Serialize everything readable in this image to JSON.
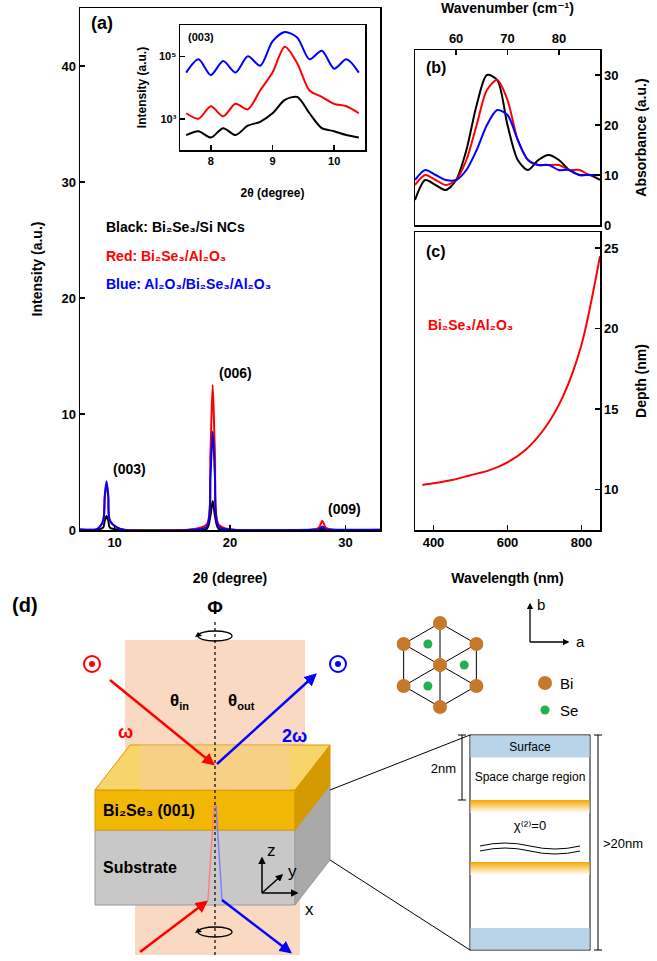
{
  "chart_data": [
    {
      "panel": "(a)",
      "type": "line",
      "xlabel": "2θ (degree)",
      "ylabel": "Intensity (a.u.)",
      "xlim": [
        7,
        33
      ],
      "xticks": [
        10,
        20,
        30
      ],
      "ylim": [
        0,
        45
      ],
      "yticks": [
        0,
        10,
        20,
        30,
        40
      ],
      "x": [
        7,
        8.5,
        9.0,
        9.15,
        9.3,
        9.45,
        9.6,
        10.5,
        17.0,
        18.0,
        18.3,
        18.5,
        18.7,
        19.0,
        20.0,
        27.0,
        27.7,
        28.0,
        28.3,
        29.0,
        33
      ],
      "series": [
        {
          "name": "Black: Bi₂Se₃/Si NCs",
          "color": "#000000",
          "values": [
            0.02,
            0.03,
            0.2,
            0.8,
            1.2,
            0.8,
            0.2,
            0.03,
            0.02,
            0.1,
            1.2,
            2.5,
            1.2,
            0.1,
            0.02,
            0.01,
            0.03,
            0.1,
            0.03,
            0.01,
            0.01
          ]
        },
        {
          "name": "Red: Bi₂Se₃/Al₂O₃",
          "color": "#ff0000",
          "values": [
            0.05,
            0.1,
            0.8,
            2.8,
            4.0,
            2.8,
            0.8,
            0.1,
            0.1,
            0.5,
            6.5,
            12.5,
            6.5,
            0.5,
            0.05,
            0.02,
            0.2,
            0.8,
            0.2,
            0.02,
            0.02
          ]
        },
        {
          "name": "Blue: Al₂O₃/Bi₂Se₃/Al₂O₃",
          "color": "#0000ff",
          "values": [
            0.05,
            0.1,
            0.8,
            3.0,
            4.2,
            3.0,
            0.8,
            0.1,
            0.05,
            0.3,
            4.5,
            8.5,
            4.5,
            0.3,
            0.05,
            0.02,
            0.05,
            0.3,
            0.05,
            0.02,
            0.02
          ]
        }
      ],
      "annotations": [
        {
          "text": "(003)",
          "x": 9.3
        },
        {
          "text": "(006)",
          "x": 18.5
        },
        {
          "text": "(009)",
          "x": 28.0
        }
      ]
    },
    {
      "type": "line",
      "log": "y",
      "xlabel": "2θ (degree)",
      "ylabel": "Intensity (a.u.)",
      "xlim": [
        7.5,
        10.5
      ],
      "xticks": [
        8,
        9,
        10
      ],
      "ylim": [
        100,
        1000000
      ],
      "yticks": [
        {
          "value": 1000,
          "label": "10³"
        },
        {
          "value": 100000,
          "label": "10⁵"
        }
      ],
      "x": [
        7.6,
        7.8,
        8.0,
        8.2,
        8.4,
        8.6,
        8.8,
        9.0,
        9.2,
        9.4,
        9.6,
        9.8,
        10.0,
        10.2,
        10.4
      ],
      "series": [
        {
          "color": "#000000",
          "values": [
            300,
            400,
            250,
            500,
            300,
            600,
            800,
            1500,
            4000,
            5000,
            1500,
            500,
            400,
            300,
            250
          ]
        },
        {
          "color": "#ff0000",
          "values": [
            1500,
            1000,
            2500,
            1200,
            3000,
            2000,
            8000,
            30000,
            200000,
            60000,
            8000,
            5000,
            3000,
            2500,
            1500
          ]
        },
        {
          "color": "#0000ff",
          "values": [
            30000,
            80000,
            25000,
            70000,
            30000,
            100000,
            50000,
            300000,
            600000,
            400000,
            80000,
            150000,
            40000,
            80000,
            30000
          ]
        }
      ],
      "annotations": [
        {
          "text": "(003)"
        }
      ]
    },
    {
      "panel": "(b)",
      "type": "line",
      "xlabel": "Wavenumber (cm⁻¹)",
      "ylabel": "Absorbance (a.u.)",
      "xlim": [
        52,
        88
      ],
      "xticks": [
        60,
        70,
        80
      ],
      "ylim": [
        0,
        35
      ],
      "yticks": [
        0,
        10,
        20,
        30
      ],
      "x": [
        52,
        54,
        56,
        58,
        60,
        62,
        64,
        66,
        68,
        70,
        72,
        74,
        76,
        78,
        80,
        82,
        84,
        86,
        88
      ],
      "series": [
        {
          "color": "#000000",
          "values": [
            5,
            9,
            8,
            7,
            9,
            15,
            24,
            30,
            29,
            20,
            13,
            11,
            13,
            14,
            13,
            11,
            10,
            10,
            9
          ]
        },
        {
          "color": "#ff0000",
          "values": [
            8,
            10,
            9,
            8,
            9,
            13,
            20,
            27,
            29,
            25,
            17,
            13,
            12,
            12,
            12,
            11,
            11,
            10,
            10
          ]
        },
        {
          "color": "#0000ff",
          "values": [
            9,
            11,
            10,
            9,
            9,
            11,
            15,
            20,
            23,
            22,
            17,
            13,
            12,
            12,
            11,
            11,
            10,
            10,
            10
          ]
        }
      ]
    },
    {
      "panel": "(c)",
      "type": "line",
      "xlabel": "Wavelength (nm)",
      "ylabel": "Depth (nm)",
      "xlim": [
        350,
        850
      ],
      "xticks": [
        400,
        600,
        800
      ],
      "ylim": [
        7.5,
        26
      ],
      "yticks": [
        10,
        15,
        20,
        25
      ],
      "x": [
        370,
        400,
        450,
        500,
        550,
        600,
        650,
        700,
        750,
        800,
        850
      ],
      "series": [
        {
          "name": "Bi₂Se₃/Al₂O₃",
          "color": "#ff0000",
          "values": [
            10.3,
            10.4,
            10.6,
            10.9,
            11.2,
            11.7,
            12.5,
            13.8,
            15.8,
            19.0,
            24.5
          ]
        }
      ]
    }
  ],
  "diagram": {
    "panel": "(d)",
    "rotation_label": "Φ",
    "incident_label": "ω",
    "outgoing_label": "2ω",
    "angle_in": {
      "symbol": "θ",
      "sub": "in"
    },
    "angle_out": {
      "symbol": "θ",
      "sub": "out"
    },
    "film_label": "Bi₂Se₃ (001)",
    "substrate_label": "Substrate",
    "frame_axes": [
      "x",
      "y",
      "z"
    ],
    "lattice": {
      "axes": [
        "a",
        "b"
      ],
      "atoms": [
        {
          "name": "Bi",
          "color": "#c8782a"
        },
        {
          "name": "Se",
          "color": "#22b14c"
        }
      ]
    },
    "layers": {
      "surface": "Surface",
      "space_charge": "Space charge region",
      "bulk": "χ⁽²⁾=0",
      "depth_top": "2nm",
      "depth_total": ">20nm"
    }
  }
}
